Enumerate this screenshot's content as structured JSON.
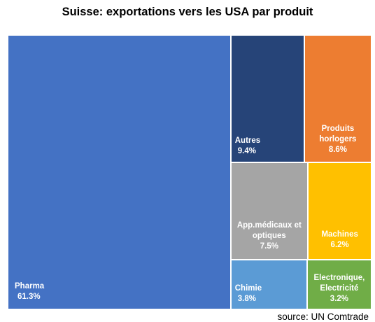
{
  "chart_data": {
    "type": "treemap",
    "title": "Suisse: exportations vers les USA par produit",
    "source": "source: UN Comtrade",
    "items": [
      {
        "name": "Pharma",
        "value_label": "61.3%",
        "value": 61.3,
        "color": "#4472C4"
      },
      {
        "name": "Autres",
        "value_label": "9.4%",
        "value": 9.4,
        "color": "#264478"
      },
      {
        "name": "Produits horlogers",
        "value_label": "8.6%",
        "value": 8.6,
        "color": "#ED7D31"
      },
      {
        "name": "App.médicaux et optiques",
        "value_label": "7.5%",
        "value": 7.5,
        "color": "#A5A5A5"
      },
      {
        "name": "Machines",
        "value_label": "6.2%",
        "value": 6.2,
        "color": "#FFC000"
      },
      {
        "name": "Chimie",
        "value_label": "3.8%",
        "value": 3.8,
        "color": "#5B9BD5"
      },
      {
        "name": "Electronique, Electricité",
        "value_label": "3.2%",
        "value": 3.2,
        "color": "#70AD47"
      }
    ]
  }
}
